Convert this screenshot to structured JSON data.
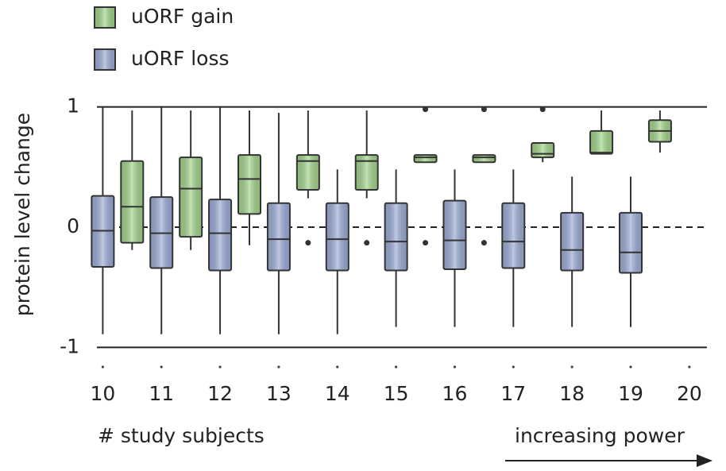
{
  "chart_data": {
    "type": "box",
    "ylabel": "protein level change",
    "xlabel": "# study subjects",
    "annotation": "increasing power",
    "xlim": [
      9.9,
      20.3
    ],
    "xticks": [
      10,
      11,
      12,
      13,
      14,
      15,
      16,
      17,
      18,
      19,
      20
    ],
    "ylim": [
      -1.05,
      1.05
    ],
    "yticks": [
      1,
      0,
      -1
    ],
    "series": [
      {
        "name": "uORF gain",
        "color": "#a3d48c",
        "x": [
          10.5,
          11.5,
          12.5,
          13.5,
          14.5,
          15.5,
          16.5,
          17.5,
          18.5,
          19.5
        ],
        "whisker_low": [
          -0.19,
          -0.19,
          -0.15,
          0.24,
          0.24,
          0.54,
          0.54,
          0.54,
          0.61,
          0.62
        ],
        "q1": [
          -0.13,
          -0.08,
          0.11,
          0.31,
          0.31,
          0.54,
          0.54,
          0.58,
          0.61,
          0.71
        ],
        "median": [
          0.17,
          0.32,
          0.4,
          0.55,
          0.55,
          0.58,
          0.58,
          0.61,
          0.62,
          0.8
        ],
        "q3": [
          0.55,
          0.58,
          0.6,
          0.6,
          0.6,
          0.6,
          0.6,
          0.7,
          0.8,
          0.89
        ],
        "whisker_high": [
          0.97,
          0.97,
          0.97,
          0.97,
          0.97,
          0.6,
          0.6,
          0.7,
          0.97,
          0.97
        ],
        "outliers": [
          [],
          [],
          [],
          [
            -0.13
          ],
          [
            -0.13
          ],
          [
            0.98,
            -0.13
          ],
          [
            0.98,
            -0.13
          ],
          [
            0.98
          ],
          [],
          []
        ]
      },
      {
        "name": "uORF loss",
        "color": "#9cacd6",
        "x": [
          10,
          11,
          12,
          13,
          14,
          15,
          16,
          17,
          18,
          19
        ],
        "whisker_low": [
          -0.89,
          -0.89,
          -0.89,
          -0.89,
          -0.89,
          -0.83,
          -0.83,
          -0.83,
          -0.83,
          -0.83
        ],
        "q1": [
          -0.33,
          -0.34,
          -0.36,
          -0.36,
          -0.36,
          -0.36,
          -0.35,
          -0.34,
          -0.36,
          -0.38
        ],
        "median": [
          -0.03,
          -0.05,
          -0.05,
          -0.1,
          -0.1,
          -0.12,
          -0.11,
          -0.12,
          -0.19,
          -0.21
        ],
        "q3": [
          0.26,
          0.25,
          0.23,
          0.2,
          0.2,
          0.2,
          0.22,
          0.2,
          0.12,
          0.12
        ],
        "whisker_high": [
          1.0,
          1.0,
          1.0,
          0.95,
          0.48,
          0.48,
          0.48,
          0.48,
          0.42,
          0.42
        ],
        "outliers": [
          [],
          [],
          [],
          [],
          [],
          [],
          [],
          [],
          [],
          []
        ]
      }
    ]
  }
}
